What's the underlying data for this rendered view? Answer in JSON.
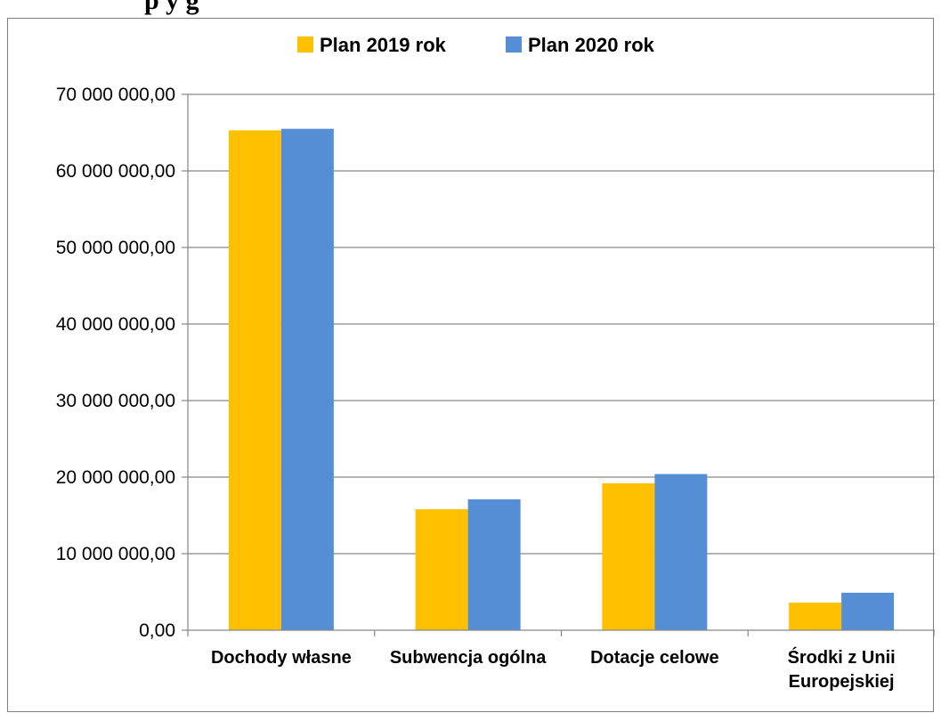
{
  "page_title": "p                 y                    g",
  "chart_data": {
    "type": "bar",
    "title": "",
    "xlabel": "",
    "ylabel": "",
    "categories": [
      [
        "Dochody własne"
      ],
      [
        "Subwencja ogólna"
      ],
      [
        "Dotacje celowe"
      ],
      [
        "Środki z Unii",
        "Europejskiej"
      ]
    ],
    "series": [
      {
        "name": "Plan 2019 rok",
        "color": "#FFC000",
        "values": [
          65300000,
          15800000,
          19200000,
          3600000
        ]
      },
      {
        "name": "Plan 2020 rok",
        "color": "#558ED5",
        "values": [
          65500000,
          17100000,
          20400000,
          4900000
        ]
      }
    ],
    "ylim": [
      0,
      70000000
    ],
    "yticks": [
      0,
      10000000,
      20000000,
      30000000,
      40000000,
      50000000,
      60000000,
      70000000
    ],
    "ytick_labels": [
      "0,00",
      "10 000 000,00",
      "20 000 000,00",
      "30 000 000,00",
      "40 000 000,00",
      "50 000 000,00",
      "60 000 000,00",
      "70 000 000,00"
    ],
    "grid": true,
    "legend_position": "top-center"
  }
}
